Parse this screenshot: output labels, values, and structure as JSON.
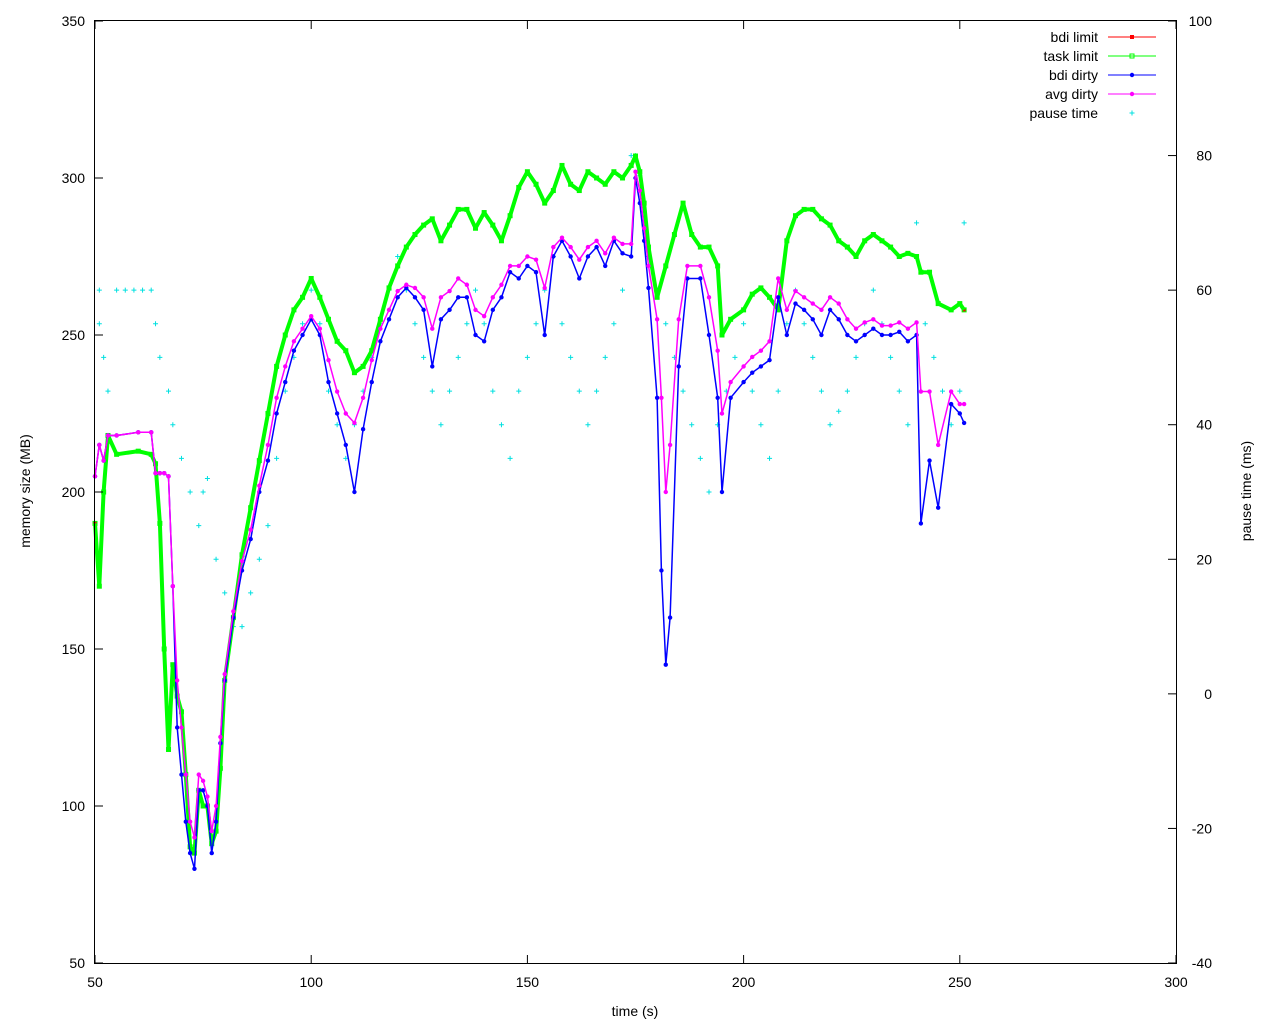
{
  "chart_data": {
    "type": "line",
    "title": "",
    "xlabel": "time (s)",
    "ylabel": "memory size (MB)",
    "y2label": "pause time (ms)",
    "xlim": [
      50,
      300
    ],
    "ylim": [
      50,
      350
    ],
    "y2lim": [
      -40,
      100
    ],
    "xticks": [
      50,
      100,
      150,
      200,
      250,
      300
    ],
    "yticks": [
      50,
      100,
      150,
      200,
      250,
      300,
      350
    ],
    "y2ticks": [
      -40,
      -20,
      0,
      20,
      40,
      60,
      80,
      100
    ],
    "grid": false,
    "legend_position": "top-right",
    "series": [
      {
        "name": "bdi limit",
        "axis": "y",
        "color": "#ff0000",
        "marker": "square",
        "x": [
          50,
          51,
          52,
          53,
          55,
          60,
          63,
          64,
          65,
          66,
          67,
          68,
          69,
          70,
          71,
          72,
          73,
          74,
          75,
          76,
          77,
          78,
          79,
          80,
          82,
          84,
          86,
          88,
          90,
          92,
          94,
          96,
          98,
          100,
          102,
          104,
          106,
          108,
          110,
          112,
          114,
          116,
          118,
          120,
          122,
          124,
          126,
          128,
          130,
          132,
          134,
          136,
          138,
          140,
          142,
          144,
          146,
          148,
          150,
          152,
          154,
          156,
          158,
          160,
          162,
          164,
          166,
          168,
          170,
          172,
          174,
          175,
          176,
          177,
          178,
          180,
          182,
          184,
          186,
          188,
          190,
          192,
          194,
          195,
          197,
          200,
          202,
          204,
          206,
          208,
          210,
          212,
          214,
          216,
          218,
          220,
          222,
          224,
          226,
          228,
          230,
          232,
          234,
          236,
          238,
          240,
          241,
          243,
          245,
          248,
          250,
          251
        ],
        "y": [
          190,
          170,
          200,
          218,
          212,
          213,
          212,
          209,
          190,
          150,
          118,
          145,
          135,
          130,
          110,
          87,
          85,
          105,
          100,
          100,
          88,
          92,
          112,
          140,
          160,
          180,
          195,
          210,
          225,
          240,
          250,
          258,
          262,
          268,
          262,
          255,
          248,
          245,
          238,
          240,
          245,
          255,
          265,
          272,
          278,
          282,
          285,
          287,
          280,
          285,
          290,
          290,
          284,
          289,
          285,
          280,
          288,
          297,
          302,
          298,
          292,
          296,
          304,
          298,
          296,
          302,
          300,
          298,
          302,
          300,
          304,
          307,
          302,
          292,
          278,
          262,
          272,
          282,
          292,
          282,
          278,
          278,
          272,
          250,
          255,
          258,
          263,
          265,
          262,
          258,
          280,
          288,
          290,
          290,
          287,
          285,
          280,
          278,
          275,
          280,
          282,
          280,
          278,
          275,
          276,
          275,
          270,
          270,
          260,
          258,
          260,
          258
        ]
      },
      {
        "name": "task limit",
        "axis": "y",
        "color": "#00ff00",
        "marker": "square-open",
        "x": [
          50,
          51,
          52,
          53,
          55,
          60,
          63,
          64,
          65,
          66,
          67,
          68,
          69,
          70,
          71,
          72,
          73,
          74,
          75,
          76,
          77,
          78,
          79,
          80,
          82,
          84,
          86,
          88,
          90,
          92,
          94,
          96,
          98,
          100,
          102,
          104,
          106,
          108,
          110,
          112,
          114,
          116,
          118,
          120,
          122,
          124,
          126,
          128,
          130,
          132,
          134,
          136,
          138,
          140,
          142,
          144,
          146,
          148,
          150,
          152,
          154,
          156,
          158,
          160,
          162,
          164,
          166,
          168,
          170,
          172,
          174,
          175,
          176,
          177,
          178,
          180,
          182,
          184,
          186,
          188,
          190,
          192,
          194,
          195,
          197,
          200,
          202,
          204,
          206,
          208,
          210,
          212,
          214,
          216,
          218,
          220,
          222,
          224,
          226,
          228,
          230,
          232,
          234,
          236,
          238,
          240,
          241,
          243,
          245,
          248,
          250,
          251
        ],
        "y": [
          190,
          170,
          200,
          218,
          212,
          213,
          212,
          209,
          190,
          150,
          118,
          145,
          135,
          130,
          110,
          87,
          85,
          105,
          100,
          100,
          88,
          92,
          112,
          140,
          160,
          180,
          195,
          210,
          225,
          240,
          250,
          258,
          262,
          268,
          262,
          255,
          248,
          245,
          238,
          240,
          245,
          255,
          265,
          272,
          278,
          282,
          285,
          287,
          280,
          285,
          290,
          290,
          284,
          289,
          285,
          280,
          288,
          297,
          302,
          298,
          292,
          296,
          304,
          298,
          296,
          302,
          300,
          298,
          302,
          300,
          304,
          307,
          302,
          292,
          278,
          262,
          272,
          282,
          292,
          282,
          278,
          278,
          272,
          250,
          255,
          258,
          263,
          265,
          262,
          258,
          280,
          288,
          290,
          290,
          287,
          285,
          280,
          278,
          275,
          280,
          282,
          280,
          278,
          275,
          276,
          275,
          270,
          270,
          260,
          258,
          260,
          258
        ]
      },
      {
        "name": "bdi dirty",
        "axis": "y",
        "color": "#0000ff",
        "marker": "circle",
        "x": [
          50,
          51,
          52,
          53,
          55,
          60,
          63,
          64,
          65,
          66,
          67,
          68,
          69,
          70,
          71,
          72,
          73,
          74,
          75,
          76,
          77,
          78,
          79,
          80,
          82,
          84,
          86,
          88,
          90,
          92,
          94,
          96,
          98,
          100,
          102,
          104,
          106,
          108,
          110,
          112,
          114,
          116,
          118,
          120,
          122,
          124,
          126,
          128,
          130,
          132,
          134,
          136,
          138,
          140,
          142,
          144,
          146,
          148,
          150,
          152,
          154,
          156,
          158,
          160,
          162,
          164,
          166,
          168,
          170,
          172,
          174,
          175,
          176,
          177,
          178,
          180,
          181,
          182,
          183,
          185,
          187,
          190,
          192,
          194,
          195,
          197,
          200,
          202,
          204,
          206,
          208,
          210,
          212,
          214,
          216,
          218,
          220,
          222,
          224,
          226,
          228,
          230,
          232,
          234,
          236,
          238,
          240,
          241,
          243,
          245,
          248,
          250,
          251
        ],
        "y": [
          205,
          215,
          210,
          218,
          218,
          219,
          219,
          206,
          206,
          206,
          205,
          170,
          125,
          110,
          95,
          85,
          80,
          105,
          105,
          100,
          85,
          95,
          120,
          140,
          160,
          175,
          185,
          200,
          210,
          225,
          235,
          245,
          250,
          255,
          250,
          235,
          225,
          215,
          200,
          220,
          235,
          248,
          255,
          262,
          265,
          262,
          258,
          240,
          255,
          258,
          262,
          262,
          250,
          248,
          258,
          262,
          270,
          268,
          272,
          270,
          250,
          275,
          280,
          275,
          268,
          275,
          278,
          272,
          280,
          276,
          275,
          300,
          292,
          280,
          265,
          230,
          175,
          145,
          160,
          240,
          268,
          268,
          250,
          230,
          200,
          230,
          235,
          238,
          240,
          242,
          262,
          250,
          260,
          258,
          255,
          250,
          258,
          255,
          250,
          248,
          250,
          252,
          250,
          250,
          251,
          248,
          250,
          190,
          210,
          195,
          228,
          225,
          222
        ]
      },
      {
        "name": "avg dirty",
        "axis": "y",
        "color": "#ff00ff",
        "marker": "circle",
        "x": [
          50,
          51,
          52,
          53,
          55,
          60,
          63,
          64,
          65,
          66,
          67,
          68,
          69,
          70,
          71,
          72,
          73,
          74,
          75,
          76,
          77,
          78,
          79,
          80,
          82,
          84,
          86,
          88,
          90,
          92,
          94,
          96,
          98,
          100,
          102,
          104,
          106,
          108,
          110,
          112,
          114,
          116,
          118,
          120,
          122,
          124,
          126,
          128,
          130,
          132,
          134,
          136,
          138,
          140,
          142,
          144,
          146,
          148,
          150,
          152,
          154,
          156,
          158,
          160,
          162,
          164,
          166,
          168,
          170,
          172,
          174,
          175,
          176,
          177,
          178,
          180,
          181,
          182,
          183,
          185,
          187,
          190,
          192,
          194,
          195,
          197,
          200,
          202,
          204,
          206,
          208,
          210,
          212,
          214,
          216,
          218,
          220,
          222,
          224,
          226,
          228,
          230,
          232,
          234,
          236,
          238,
          240,
          241,
          243,
          245,
          248,
          250,
          251
        ],
        "y": [
          205,
          215,
          210,
          218,
          218,
          219,
          219,
          206,
          206,
          206,
          205,
          170,
          140,
          125,
          110,
          95,
          90,
          110,
          108,
          103,
          92,
          100,
          122,
          142,
          162,
          178,
          188,
          202,
          215,
          230,
          240,
          248,
          252,
          256,
          252,
          242,
          232,
          225,
          222,
          230,
          242,
          252,
          258,
          264,
          266,
          265,
          262,
          252,
          262,
          264,
          268,
          266,
          258,
          256,
          262,
          266,
          272,
          272,
          275,
          274,
          265,
          278,
          281,
          278,
          274,
          278,
          280,
          276,
          281,
          279,
          279,
          302,
          296,
          284,
          272,
          255,
          230,
          200,
          215,
          255,
          272,
          272,
          262,
          245,
          225,
          235,
          240,
          243,
          245,
          248,
          268,
          258,
          264,
          262,
          260,
          258,
          262,
          260,
          255,
          252,
          254,
          255,
          253,
          253,
          254,
          252,
          254,
          232,
          232,
          215,
          232,
          228,
          228
        ]
      },
      {
        "name": "pause time",
        "axis": "y2",
        "color": "#00e0e0",
        "marker": "plus",
        "x": [
          51,
          51,
          52,
          53,
          55,
          57,
          59,
          61,
          63,
          64,
          65,
          67,
          68,
          70,
          72,
          74,
          75,
          76,
          78,
          80,
          82,
          84,
          86,
          88,
          90,
          92,
          94,
          96,
          98,
          100,
          102,
          104,
          106,
          108,
          110,
          112,
          114,
          116,
          118,
          120,
          122,
          124,
          126,
          128,
          130,
          132,
          134,
          136,
          138,
          140,
          142,
          144,
          146,
          148,
          150,
          152,
          154,
          156,
          158,
          160,
          162,
          164,
          166,
          168,
          170,
          172,
          174,
          175,
          176,
          178,
          180,
          182,
          184,
          186,
          188,
          190,
          192,
          194,
          196,
          198,
          200,
          202,
          204,
          206,
          208,
          210,
          212,
          214,
          216,
          218,
          220,
          222,
          224,
          226,
          228,
          230,
          232,
          234,
          236,
          238,
          240,
          242,
          244,
          246,
          248,
          250,
          251
        ],
        "y": [
          60,
          55,
          50,
          45,
          60,
          60,
          60,
          60,
          60,
          55,
          50,
          45,
          40,
          35,
          30,
          25,
          30,
          32,
          20,
          15,
          10,
          10,
          15,
          20,
          25,
          35,
          45,
          50,
          55,
          60,
          55,
          45,
          40,
          35,
          40,
          45,
          50,
          55,
          60,
          65,
          60,
          55,
          50,
          45,
          40,
          45,
          50,
          55,
          60,
          55,
          45,
          40,
          35,
          45,
          50,
          55,
          60,
          65,
          55,
          50,
          45,
          40,
          45,
          50,
          55,
          60,
          80,
          80,
          77,
          65,
          60,
          55,
          50,
          45,
          40,
          35,
          30,
          40,
          45,
          50,
          55,
          45,
          40,
          35,
          45,
          55,
          60,
          55,
          50,
          45,
          40,
          42,
          45,
          50,
          55,
          60,
          55,
          50,
          45,
          40,
          70,
          55,
          50,
          45,
          40,
          45,
          70
        ]
      }
    ]
  }
}
